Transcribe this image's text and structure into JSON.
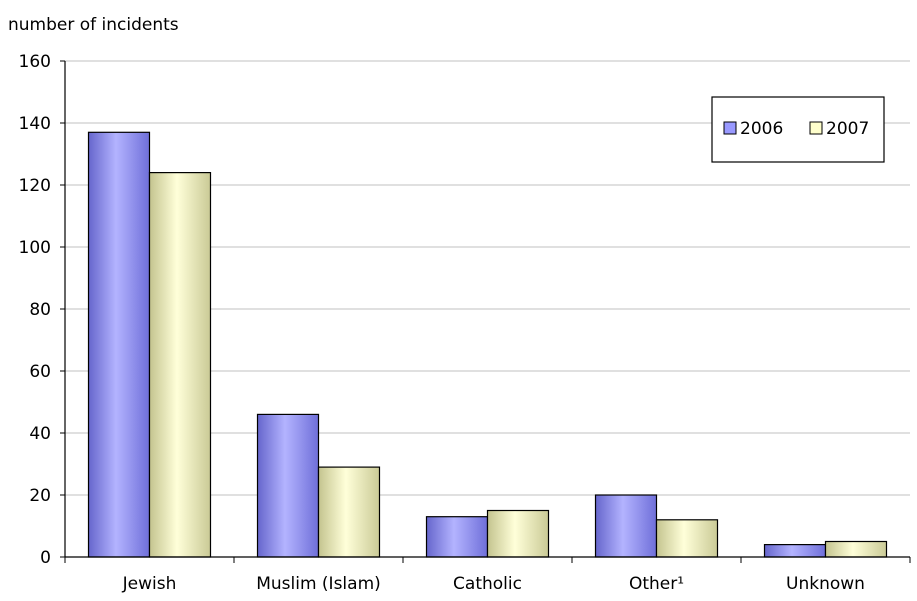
{
  "chart_data": {
    "type": "bar",
    "ylabel": "number of incidents",
    "categories": [
      "Jewish",
      "Muslim (Islam)",
      "Catholic",
      "Other¹",
      "Unknown"
    ],
    "series": [
      {
        "name": "2006",
        "values": [
          137,
          46,
          13,
          20,
          4
        ],
        "color": "#9999ff"
      },
      {
        "name": "2007",
        "values": [
          124,
          29,
          15,
          12,
          5
        ],
        "color": "#ebebb8"
      }
    ],
    "ylim": [
      0,
      160
    ],
    "yticks": [
      0,
      20,
      40,
      60,
      80,
      100,
      120,
      140,
      160
    ],
    "grid": true,
    "legend_position": "top-right"
  }
}
